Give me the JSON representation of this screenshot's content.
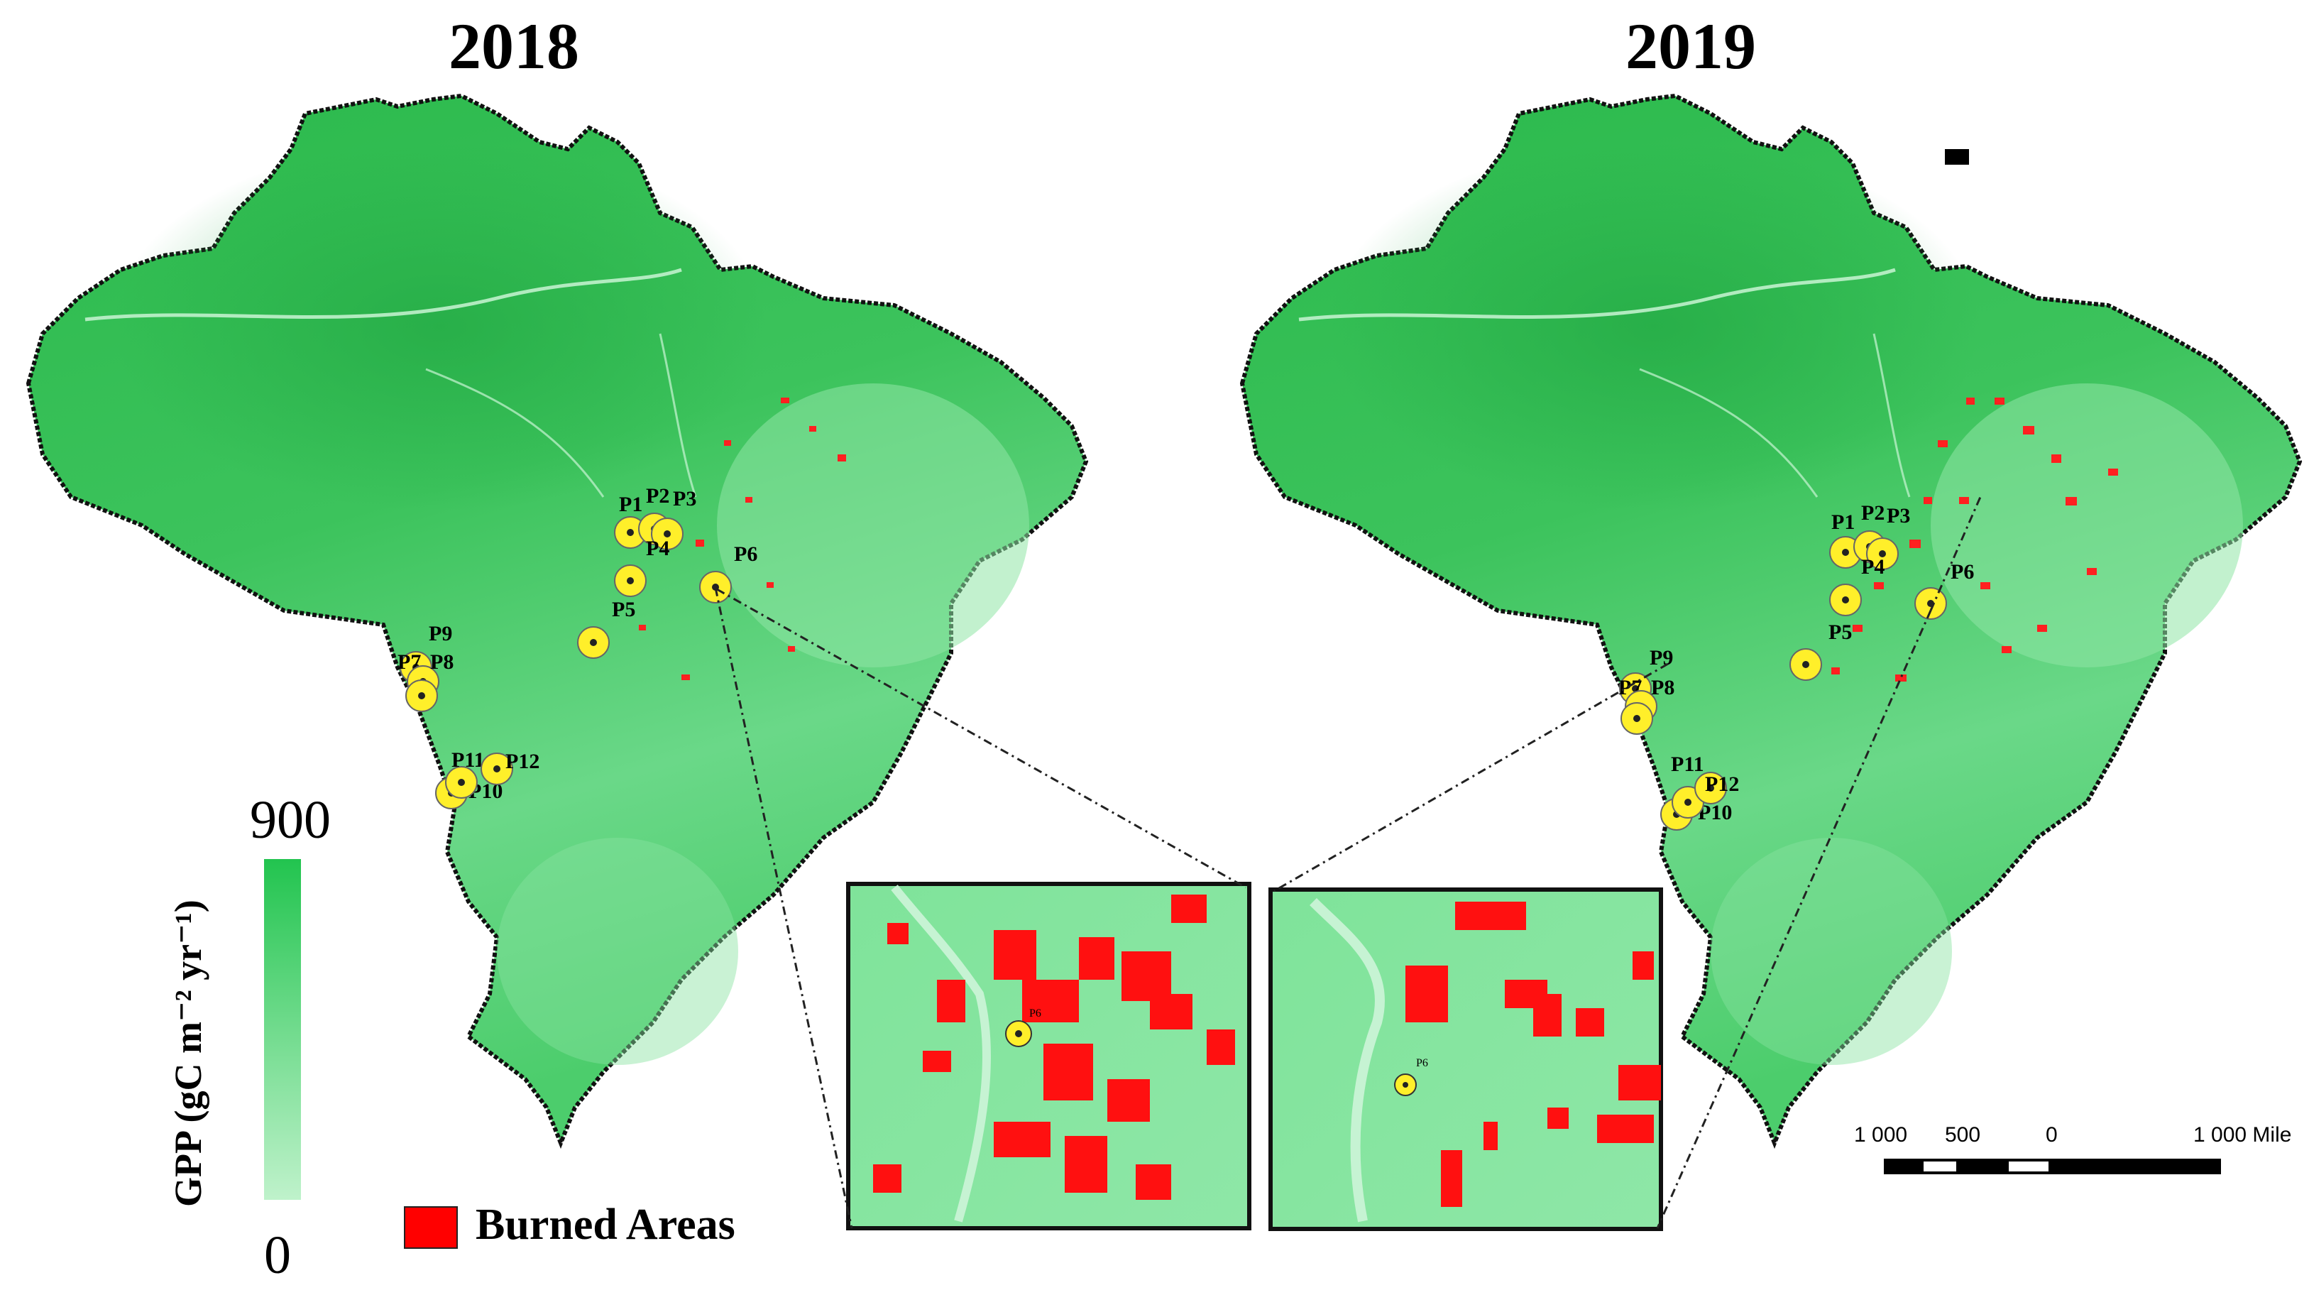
{
  "titles": {
    "left": "2018",
    "right": "2019"
  },
  "legend": {
    "axis_label": "GPP (gC m⁻² yr⁻¹)",
    "max": "900",
    "min": "0",
    "gradient_top": "#22c44f",
    "gradient_bottom": "#bff2cb"
  },
  "burned_legend": {
    "label": "Burned Areas",
    "color": "#ff0000"
  },
  "points": [
    "P1",
    "P2",
    "P3",
    "P4",
    "P5",
    "P6",
    "P7",
    "P8",
    "P9",
    "P10",
    "P11",
    "P12"
  ],
  "marker_color": "#ffef2a",
  "inset_label": "P6",
  "scale_bar": {
    "labels": [
      "1 000",
      "500",
      "0",
      "1 000 Mile"
    ]
  },
  "colors": {
    "land_dark": "#2fb94f",
    "land_light": "#6fdc8a",
    "border": "#111111"
  }
}
